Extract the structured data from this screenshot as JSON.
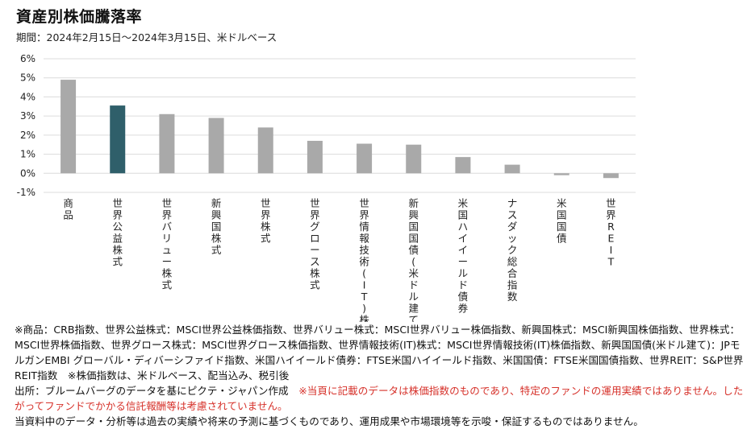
{
  "header": {
    "title": "資産別株価騰落率",
    "subtitle": "期間：2024年2月15日～2024年3月15日、米ドルベース"
  },
  "colors": {
    "bar": "#a9a9a9",
    "highlight": "#2f5f6a",
    "grid": "#dcdcdc",
    "red": "#d6312a"
  },
  "chart_data": {
    "type": "bar",
    "categories": [
      "商品",
      "世界公益株式",
      "世界バリュー株式",
      "新興国株式",
      "世界株式",
      "世界グロース株式",
      "世界情報技術(IT)株式",
      "新興国国債(米ドル建て)",
      "米国ハイイールド債券",
      "ナスダック総合指数",
      "米国国債",
      "世界REIT"
    ],
    "values": [
      4.9,
      3.55,
      3.1,
      2.9,
      2.4,
      1.7,
      1.55,
      1.5,
      0.85,
      0.45,
      -0.1,
      -0.25
    ],
    "highlight_index": 1,
    "ylim": [
      -1,
      6
    ],
    "yticks": [
      -1,
      0,
      1,
      2,
      3,
      4,
      5,
      6
    ],
    "ytick_labels": [
      "-1%",
      "0%",
      "1%",
      "2%",
      "3%",
      "4%",
      "5%",
      "6%"
    ],
    "grid": true,
    "legend": "none",
    "xlabel": "",
    "ylabel": ""
  },
  "notes": {
    "line1": "※商品：CRB指数、世界公益株式：MSCI世界公益株価指数、世界バリュー株式：MSCI世界バリュー株価指数、新興国株式：MSCI新興国株価指数、世界株式：MSCI世界株価指数、世界グロース株式：MSCI世界グロース株価指数、世界情報技術(IT)株式：MSCI世界情報技術(IT)株価指数、新興国国債(米ドル建て)：JPモルガンEMBI グローバル・ディバーシファイド指数、米国ハイイールド債券：FTSE米国ハイイールド指数、米国国債：FTSE米国国債指数、世界REIT：S&P世界REIT指数　※株価指数は、米ドルベース、配当込み、税引後",
    "source": "出所：ブルームバーグのデータを基にピクテ・ジャパン作成",
    "red_note": "※当頁に記載のデータは株価指数のものであり、特定のファンドの運用実績ではありません。したがってファンドでかかる信託報酬等は考慮されていません。",
    "disclaimer": "当資料中のデータ・分析等は過去の実績や将来の予測に基づくものであり、運用成果や市場環境等を示唆・保証するものではありません。"
  }
}
